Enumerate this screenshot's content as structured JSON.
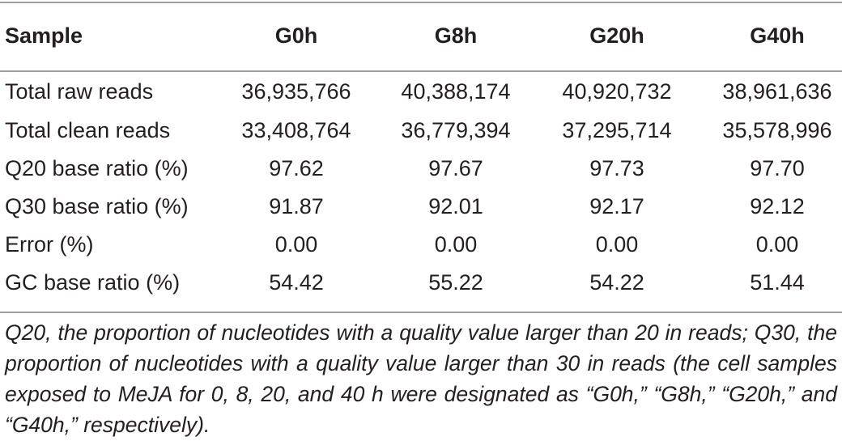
{
  "table": {
    "headers": [
      "Sample",
      "G0h",
      "G8h",
      "G20h",
      "G40h"
    ],
    "rows": [
      [
        "Total raw reads",
        "36,935,766",
        "40,388,174",
        "40,920,732",
        "38,961,636"
      ],
      [
        "Total clean reads",
        "33,408,764",
        "36,779,394",
        "37,295,714",
        "35,578,996"
      ],
      [
        "Q20 base ratio (%)",
        "97.62",
        "97.67",
        "97.73",
        "97.70"
      ],
      [
        "Q30 base ratio (%)",
        "91.87",
        "92.01",
        "92.17",
        "92.12"
      ],
      [
        "Error (%)",
        "0.00",
        "0.00",
        "0.00",
        "0.00"
      ],
      [
        "GC base ratio (%)",
        "54.42",
        "55.22",
        "54.22",
        "51.44"
      ]
    ]
  },
  "footnote": "Q20, the proportion of nucleotides with a quality value larger than 20 in reads; Q30, the proportion of nucleotides with a quality value larger than 30 in reads (the cell samples exposed to MeJA for 0, 8, 20, and 40 h were designated as “G0h,” “G8h,” “G20h,” and “G40h,” respectively)."
}
